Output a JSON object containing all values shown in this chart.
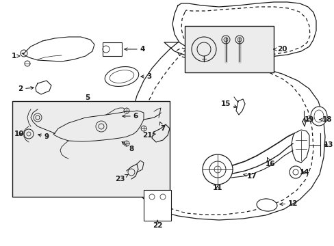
{
  "bg_color": "#ffffff",
  "fig_width": 4.89,
  "fig_height": 3.6,
  "dpi": 100,
  "line_color": "#1a1a1a",
  "box5_color": "#e8e8e8",
  "box20_color": "#e8e8e8"
}
